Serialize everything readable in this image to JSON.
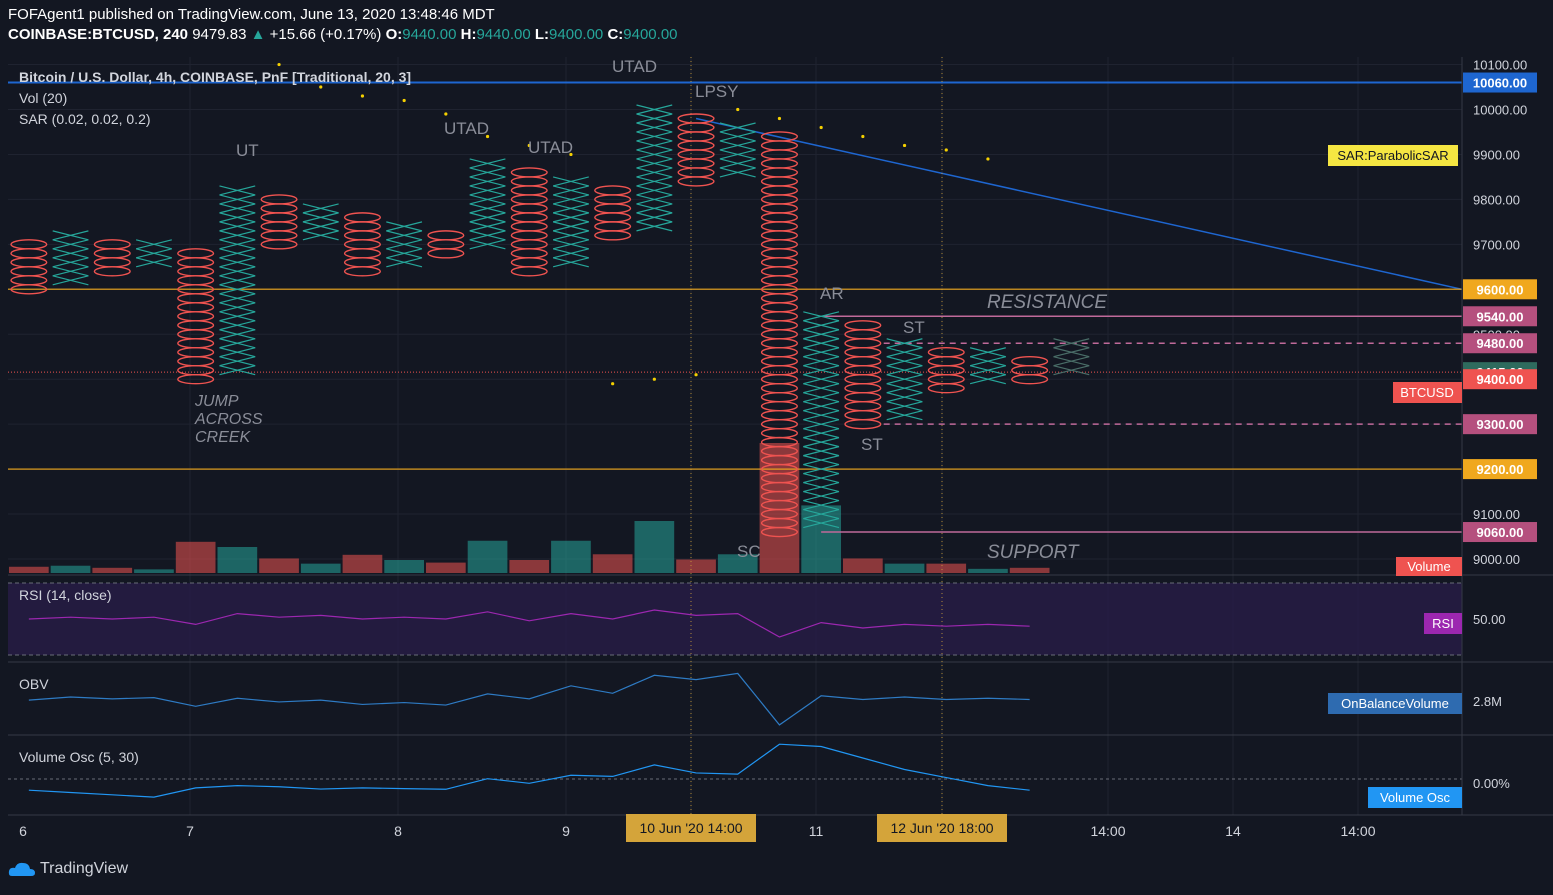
{
  "header": {
    "line1": "FOFAgent1 published on TradingView.com, June 13, 2020 13:48:46 MDT",
    "symbol": "COINBASE:BTCUSD, 240",
    "last": "9479.83",
    "change": "+15.66 (+0.17%)",
    "o_label": "O:",
    "o_val": "9440.00",
    "h_label": "H:",
    "h_val": "9440.00",
    "l_label": "L:",
    "l_val": "9400.00",
    "c_label": "C:",
    "c_val": "9400.00"
  },
  "legend": {
    "title": "Bitcoin / U.S. Dollar, 4h, COINBASE, PnF [Traditional, 20, 3]",
    "vol": "Vol (20)",
    "sar": "SAR (0.02, 0.02, 0.2)"
  },
  "panes": {
    "rsi": "RSI (14, close)",
    "obv": "OBV",
    "vosc": "Volume Osc (5, 30)"
  },
  "annotations": {
    "utad_top": "UTAD",
    "lpsy": "LPSY",
    "utad2": "UTAD",
    "utad3": "UTAD",
    "ut": "UT",
    "jump": [
      "JUMP",
      "ACROSS",
      "CREEK"
    ],
    "ar": "AR",
    "st1": "ST",
    "st2": "ST",
    "sc": "SC",
    "resistance": "RESISTANCE",
    "support": "SUPPORT"
  },
  "price_axis": {
    "ticks": [
      "10100.00",
      "10000.00",
      "9900.00",
      "9800.00",
      "9700.00",
      "9600.00",
      "9500.00",
      "9400.00",
      "9300.00",
      "9200.00",
      "9100.00",
      "9000.00"
    ],
    "tags": [
      {
        "text": "10060.00",
        "color": "#1e66d0"
      },
      {
        "text": "9600.00",
        "color": "#f0a81e"
      },
      {
        "text": "9540.00",
        "color": "#b5507e"
      },
      {
        "text": "9480.00",
        "color": "#b5507e"
      },
      {
        "text": "9415.66",
        "color": "#2e6b5e"
      },
      {
        "text": "9400.00",
        "color": "#ef5350"
      },
      {
        "text": "9300.00",
        "color": "#b5507e"
      },
      {
        "text": "9200.00",
        "color": "#f0a81e"
      },
      {
        "text": "9060.00",
        "color": "#b5507e"
      }
    ],
    "sar_label": "SAR:ParabolicSAR",
    "btc_label": "BTCUSD",
    "vol_label": "Volume",
    "rsi_tick": "50.00",
    "rsi_label": "RSI",
    "obv_tick": "2.8M",
    "obv_label": "OnBalanceVolume",
    "vosc_tick": "0.00%",
    "vosc_label": "Volume Osc"
  },
  "time_axis": {
    "labels": [
      "6",
      "7",
      "8",
      "9",
      "10",
      "11",
      "14:00",
      "14",
      "14:00"
    ],
    "tag1": "10 Jun '20  14:00",
    "tag2": "12 Jun '20   18:00"
  },
  "branding": "TradingView",
  "colors": {
    "x": "#26a69a",
    "o": "#ef5350",
    "trend": "#1e66d0",
    "level": "#f0a81e",
    "pink": "#c06a9a",
    "sar": "#f5d000",
    "rsi": "#9c27b0",
    "obv": "#2e7bc4",
    "vosc": "#2196f3"
  },
  "chart_data": {
    "type": "point_and_figure",
    "box_size": 20,
    "reversal": 3,
    "columns": [
      {
        "type": "O",
        "top": 9700,
        "bottom": 9600
      },
      {
        "type": "X",
        "bottom": 9620,
        "top": 9720
      },
      {
        "type": "O",
        "top": 9700,
        "bottom": 9640
      },
      {
        "type": "X",
        "bottom": 9660,
        "top": 9700
      },
      {
        "type": "O",
        "top": 9680,
        "bottom": 9400
      },
      {
        "type": "X",
        "bottom": 9420,
        "top": 9820
      },
      {
        "type": "O",
        "top": 9800,
        "bottom": 9700
      },
      {
        "type": "X",
        "bottom": 9720,
        "top": 9780
      },
      {
        "type": "O",
        "top": 9760,
        "bottom": 9640
      },
      {
        "type": "X",
        "bottom": 9660,
        "top": 9740
      },
      {
        "type": "O",
        "top": 9720,
        "bottom": 9680
      },
      {
        "type": "X",
        "bottom": 9700,
        "top": 9880
      },
      {
        "type": "O",
        "top": 9860,
        "bottom": 9640
      },
      {
        "type": "X",
        "bottom": 9660,
        "top": 9840
      },
      {
        "type": "O",
        "top": 9820,
        "bottom": 9720
      },
      {
        "type": "X",
        "bottom": 9740,
        "top": 10000
      },
      {
        "type": "O",
        "top": 9980,
        "bottom": 9840
      },
      {
        "type": "X",
        "bottom": 9860,
        "top": 9960
      },
      {
        "type": "O",
        "top": 9940,
        "bottom": 9060
      },
      {
        "type": "X",
        "bottom": 9080,
        "top": 9540
      },
      {
        "type": "O",
        "top": 9520,
        "bottom": 9300
      },
      {
        "type": "X",
        "bottom": 9320,
        "top": 9480
      },
      {
        "type": "O",
        "top": 9460,
        "bottom": 9380
      },
      {
        "type": "X",
        "bottom": 9400,
        "top": 9460
      },
      {
        "type": "O",
        "top": 9440,
        "bottom": 9400
      }
    ],
    "volume": [
      {
        "v": 0.12,
        "up": false
      },
      {
        "v": 0.14,
        "up": true
      },
      {
        "v": 0.1,
        "up": false
      },
      {
        "v": 0.07,
        "up": true
      },
      {
        "v": 0.6,
        "up": false
      },
      {
        "v": 0.5,
        "up": true
      },
      {
        "v": 0.28,
        "up": false
      },
      {
        "v": 0.18,
        "up": true
      },
      {
        "v": 0.35,
        "up": false
      },
      {
        "v": 0.25,
        "up": true
      },
      {
        "v": 0.2,
        "up": false
      },
      {
        "v": 0.62,
        "up": true
      },
      {
        "v": 0.25,
        "up": false
      },
      {
        "v": 0.62,
        "up": true
      },
      {
        "v": 0.36,
        "up": false
      },
      {
        "v": 1.0,
        "up": true
      },
      {
        "v": 0.26,
        "up": false
      },
      {
        "v": 0.36,
        "up": true
      },
      {
        "v": 2.5,
        "up": false
      },
      {
        "v": 1.3,
        "up": true
      },
      {
        "v": 0.28,
        "up": false
      },
      {
        "v": 0.18,
        "up": true
      },
      {
        "v": 0.18,
        "up": false
      },
      {
        "v": 0.08,
        "up": true
      },
      {
        "v": 0.1,
        "up": false
      }
    ],
    "sar": [
      10100,
      10050,
      10030,
      10020,
      9990,
      9940,
      9920,
      9900,
      9390,
      9400,
      9410,
      10000,
      9980,
      9960,
      9940,
      9920,
      9910,
      9890
    ],
    "sar_start_col": 6,
    "rsi": [
      50,
      51,
      50,
      51,
      47,
      53,
      51,
      52,
      50,
      51,
      50,
      54,
      49,
      53,
      50,
      55,
      52,
      53,
      40,
      48,
      45,
      47,
      46,
      47,
      46
    ],
    "obv": [
      0.45,
      0.5,
      0.47,
      0.49,
      0.35,
      0.48,
      0.42,
      0.45,
      0.38,
      0.41,
      0.37,
      0.55,
      0.47,
      0.68,
      0.56,
      0.85,
      0.78,
      0.88,
      0.05,
      0.52,
      0.46,
      0.5,
      0.46,
      0.48,
      0.46
    ],
    "vosc": [
      -0.4,
      -0.5,
      -0.6,
      -0.7,
      -0.3,
      -0.2,
      -0.25,
      -0.35,
      -0.3,
      -0.33,
      -0.36,
      0.1,
      -0.1,
      0.25,
      0.2,
      0.7,
      0.35,
      0.3,
      1.6,
      1.5,
      1.0,
      0.5,
      0.15,
      -0.2,
      -0.4
    ],
    "levels": {
      "trend_start": 10060,
      "trend_end": 9600,
      "orange": [
        9600,
        9200
      ],
      "pink_solid": [
        9540,
        9060
      ],
      "pink_dashed": [
        9480,
        9300
      ]
    }
  }
}
